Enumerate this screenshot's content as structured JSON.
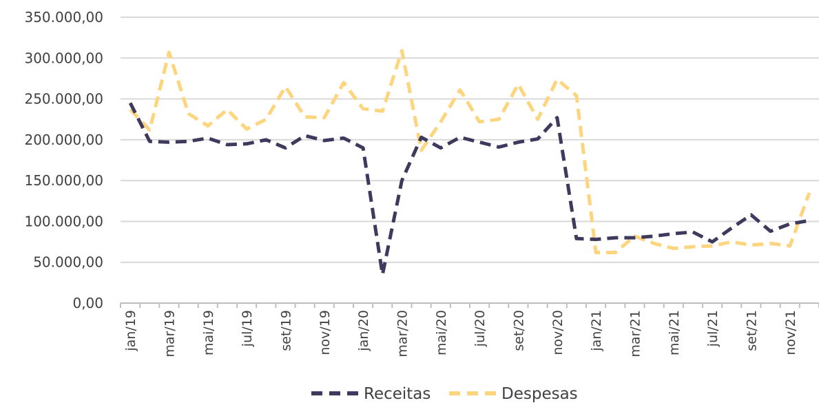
{
  "chart_data": {
    "type": "line",
    "title": "",
    "xlabel": "",
    "ylabel": "",
    "ylim": [
      0,
      350000
    ],
    "y_ticks": [
      "0,00",
      "50.000,00",
      "100.000,00",
      "150.000,00",
      "200.000,00",
      "250.000,00",
      "300.000,00",
      "350.000,00"
    ],
    "y_tick_values": [
      0,
      50000,
      100000,
      150000,
      200000,
      250000,
      300000,
      350000
    ],
    "x": [
      "jan/19",
      "fev/19",
      "mar/19",
      "abr/19",
      "mai/19",
      "jun/19",
      "jul/19",
      "ago/19",
      "set/19",
      "out/19",
      "nov/19",
      "dez/19",
      "jan/20",
      "fev/20",
      "mar/20",
      "abr/20",
      "mai/20",
      "jun/20",
      "jul/20",
      "ago/20",
      "set/20",
      "out/20",
      "nov/20",
      "dez/20",
      "jan/21",
      "fev/21",
      "mar/21",
      "abr/21",
      "mai/21",
      "jun/21",
      "jul/21",
      "ago/21",
      "set/21",
      "out/21",
      "nov/21",
      "dez/21"
    ],
    "x_tick_labels": [
      "jan/19",
      "",
      "mar/19",
      "",
      "mai/19",
      "",
      "jul/19",
      "",
      "set/19",
      "",
      "nov/19",
      "",
      "jan/20",
      "",
      "mar/20",
      "",
      "mai/20",
      "",
      "jul/20",
      "",
      "set/20",
      "",
      "nov/20",
      "",
      "jan/21",
      "",
      "mar/21",
      "",
      "mai/21",
      "",
      "jul/21",
      "",
      "set/21",
      "",
      "nov/21",
      ""
    ],
    "grid": "horizontal",
    "legend_position": "bottom",
    "series": [
      {
        "name": "Receitas",
        "color": "#3d3a5e",
        "values": [
          245000,
          198000,
          197000,
          198000,
          202000,
          194000,
          195000,
          200000,
          190000,
          205000,
          199000,
          202000,
          190000,
          35000,
          150000,
          203000,
          190000,
          203000,
          197000,
          191000,
          197000,
          201000,
          227000,
          79000,
          78000,
          80000,
          80000,
          82000,
          85000,
          87000,
          75000,
          92000,
          108000,
          88000,
          97000,
          101000
        ]
      },
      {
        "name": "Despesas",
        "color": "#fdd57e",
        "values": [
          237000,
          212000,
          307000,
          232000,
          217000,
          237000,
          213000,
          225000,
          265000,
          228000,
          227000,
          270000,
          238000,
          235000,
          309000,
          187000,
          222000,
          261000,
          222000,
          225000,
          268000,
          225000,
          274000,
          254000,
          62000,
          62000,
          82000,
          73000,
          67000,
          69000,
          70000,
          75000,
          71000,
          73000,
          70000,
          135000
        ]
      }
    ]
  }
}
